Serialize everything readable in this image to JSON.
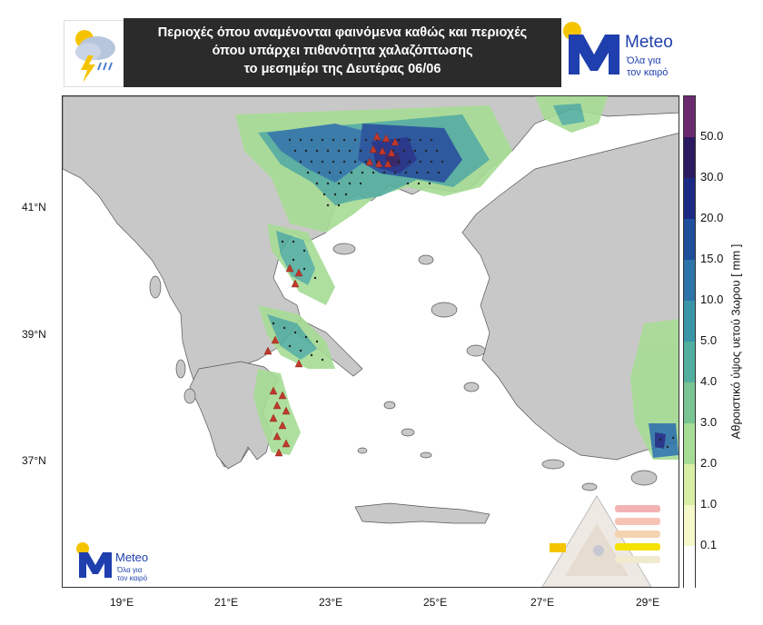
{
  "header": {
    "title_lines": [
      "Περιοχές όπου αναμένονται φαινόμενα καθώς και περιοχές",
      "όπου υπάρχει πιθανότητα χαλαζόπτωσης",
      "το μεσημέρι της Δευτέρας 06/06"
    ]
  },
  "brand": {
    "name": "Meteo",
    "tagline_1": "Όλα για",
    "tagline_2": "τον καιρό",
    "color_blue": "#1f3fae",
    "color_yellow": "#f5c400"
  },
  "map": {
    "lon_ticks": [
      "19°E",
      "21°E",
      "23°E",
      "25°E",
      "27°E",
      "29°E"
    ],
    "lat_ticks": [
      "41°N",
      "39°N",
      "37°N"
    ],
    "land_color": "#c8c8c8",
    "sea_color": "#ffffff",
    "hail_marker_color": "#c0392b",
    "hail_icon": "red-triangle-icon",
    "storm_icon": "black-dot-icon"
  },
  "colorbar": {
    "title": "Αθροιστικό ύψος υετού 3ωρου [ mm ]",
    "labels": [
      "50.0",
      "30.0",
      "20.0",
      "15.0",
      "10.0",
      "5.0",
      "4.0",
      "3.0",
      "2.0",
      "1.0",
      "0.1"
    ],
    "colors": [
      "#6b2a6e",
      "#2c1a60",
      "#1c2a85",
      "#1f4e9a",
      "#2d74a8",
      "#3a95a8",
      "#52ae9e",
      "#79c493",
      "#a7dc95",
      "#d8eea4",
      "#f5f8c8",
      "#ffffff"
    ]
  }
}
